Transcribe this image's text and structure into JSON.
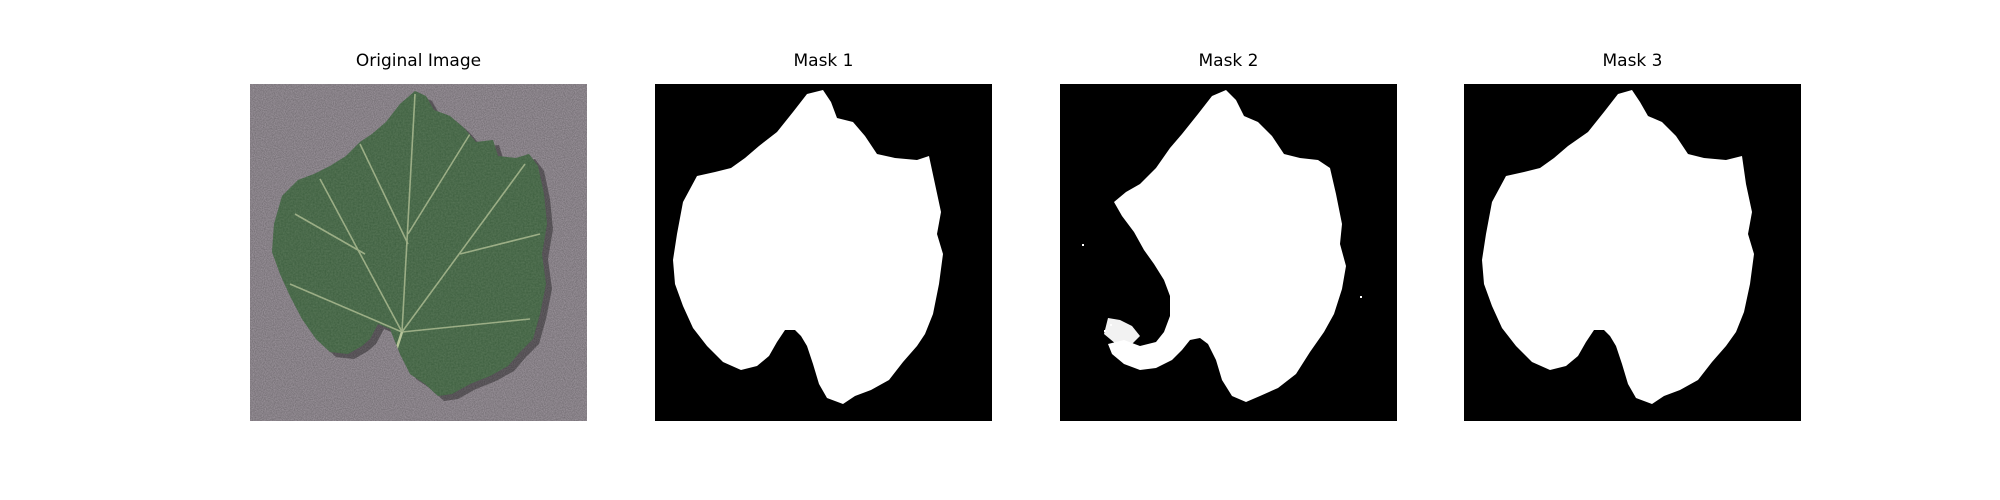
{
  "figure": {
    "panels": [
      {
        "id": "original",
        "title": "Original Image",
        "kind": "photo"
      },
      {
        "id": "mask1",
        "title": "Mask 1",
        "kind": "mask"
      },
      {
        "id": "mask2",
        "title": "Mask 2",
        "kind": "mask"
      },
      {
        "id": "mask3",
        "title": "Mask 3",
        "kind": "mask"
      }
    ]
  },
  "colors": {
    "background_surface": "#a49ca4",
    "leaf": "#3f6240",
    "leaf_vein": "#b7c59a",
    "mask_background": "#000000",
    "mask_foreground": "#ffffff"
  }
}
